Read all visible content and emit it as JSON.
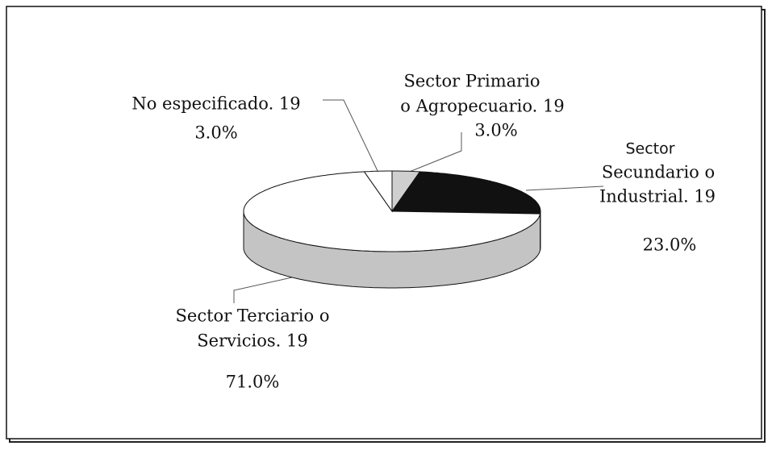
{
  "chart_data": {
    "type": "pie3d",
    "categories": [
      [
        "Sector Primario",
        "o Agropecuario. 19"
      ],
      [
        "Sector",
        "Secundario o",
        "Industrial. 19"
      ],
      [
        "Sector Terciario o",
        "Servicios. 19"
      ],
      [
        "No especificado. 19"
      ]
    ],
    "values": [
      3,
      23,
      71,
      3
    ],
    "value_labels": [
      "3.0%",
      "23.0%",
      "71.0%",
      "3.0%"
    ],
    "colors": [
      "#cfcfcf",
      "#111111",
      "#ffffff",
      "#ffffff"
    ],
    "side_colors": [
      "#b0b0b0",
      "#111111",
      "#c4c4c4",
      "#e0e0e0"
    ]
  }
}
